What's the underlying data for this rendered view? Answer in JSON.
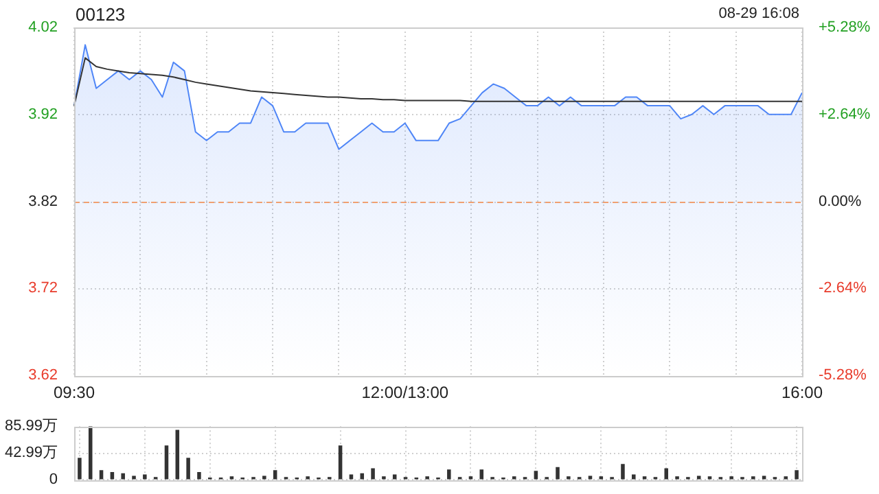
{
  "chart_data": [
    {
      "type": "line",
      "title": "00123",
      "annotations": [
        "08-29 16:08"
      ],
      "categories": [
        "09:30",
        null,
        null,
        null,
        null,
        null,
        null,
        null,
        null,
        null,
        null,
        null,
        null,
        null,
        null,
        null,
        null,
        null,
        null,
        null,
        null,
        null,
        null,
        null,
        null,
        null,
        null,
        null,
        null,
        null,
        "12:00/13:00",
        null,
        null,
        null,
        null,
        null,
        null,
        null,
        null,
        null,
        null,
        null,
        null,
        null,
        null,
        null,
        null,
        null,
        null,
        null,
        null,
        null,
        null,
        null,
        null,
        null,
        null,
        null,
        null,
        null,
        null,
        null,
        null,
        null,
        null,
        null,
        "16:00"
      ],
      "series": [
        {
          "type": "area",
          "color": "#4f86f7",
          "values": [
            3.93,
            4.0,
            3.95,
            3.96,
            3.97,
            3.96,
            3.97,
            3.96,
            3.94,
            3.98,
            3.97,
            3.9,
            3.89,
            3.9,
            3.9,
            3.91,
            3.91,
            3.94,
            3.93,
            3.9,
            3.9,
            3.91,
            3.91,
            3.91,
            3.88,
            3.89,
            3.9,
            3.91,
            3.9,
            3.9,
            3.91,
            3.89,
            3.89,
            3.89,
            3.91,
            3.915,
            3.93,
            3.945,
            3.955,
            3.95,
            3.94,
            3.93,
            3.93,
            3.94,
            3.93,
            3.94,
            3.93,
            3.93,
            3.93,
            3.93,
            3.94,
            3.94,
            3.93,
            3.93,
            3.93,
            3.915,
            3.92,
            3.93,
            3.92,
            3.93,
            3.93,
            3.93,
            3.93,
            3.92,
            3.92,
            3.92,
            3.945
          ]
        },
        {
          "type": "line",
          "color": "#333333",
          "values": [
            3.93,
            3.985,
            3.975,
            3.972,
            3.97,
            3.968,
            3.967,
            3.966,
            3.965,
            3.963,
            3.96,
            3.957,
            3.955,
            3.953,
            3.951,
            3.949,
            3.947,
            3.946,
            3.945,
            3.944,
            3.943,
            3.942,
            3.941,
            3.94,
            3.94,
            3.939,
            3.938,
            3.938,
            3.937,
            3.937,
            3.936,
            3.936,
            3.936,
            3.936,
            3.936,
            3.936,
            3.935,
            3.935,
            3.935,
            3.935,
            3.935,
            3.935,
            3.935,
            3.935,
            3.935,
            3.935,
            3.935,
            3.935,
            3.935,
            3.935,
            3.935,
            3.935,
            3.935,
            3.935,
            3.935,
            3.935,
            3.935,
            3.935,
            3.935,
            3.935,
            3.935,
            3.935,
            3.935,
            3.935,
            3.935,
            3.935,
            3.935
          ]
        }
      ],
      "ylim": [
        3.62,
        4.02
      ],
      "yticks": [
        3.62,
        3.72,
        3.82,
        3.92,
        4.02
      ],
      "y2lim": [
        -5.28,
        5.28
      ],
      "y2ticks": [
        {
          "value": -5.28,
          "label": "-5.28%"
        },
        {
          "value": -2.64,
          "label": "-2.64%"
        },
        {
          "value": 0,
          "label": "0.00%"
        },
        {
          "value": 2.64,
          "label": "+2.64%"
        },
        {
          "value": 5.28,
          "label": "+5.28%"
        }
      ],
      "ref_lines": [
        {
          "axis": "y",
          "value": 3.82,
          "color": "#f0a070",
          "line_style": "dashed"
        }
      ],
      "grid": true,
      "legend": false,
      "marker": "none"
    },
    {
      "type": "bar",
      "color": "#333333",
      "categories": [
        null,
        null,
        null,
        null,
        null,
        null,
        null,
        null,
        null,
        null,
        null,
        null,
        null,
        null,
        null,
        null,
        null,
        null,
        null,
        null,
        null,
        null,
        null,
        null,
        null,
        null,
        null,
        null,
        null,
        null,
        null,
        null,
        null,
        null,
        null,
        null,
        null,
        null,
        null,
        null,
        null,
        null,
        null,
        null,
        null,
        null,
        null,
        null,
        null,
        null,
        null,
        null,
        null,
        null,
        null,
        null,
        null,
        null,
        null,
        null,
        null,
        null,
        null,
        null,
        null,
        null,
        null
      ],
      "values": [
        35,
        85.99,
        15,
        12,
        10,
        6,
        8,
        4,
        55,
        80,
        35,
        12,
        3,
        3,
        5,
        3,
        4,
        6,
        15,
        4,
        3,
        5,
        3,
        4,
        55,
        8,
        10,
        18,
        5,
        8,
        4,
        3,
        5,
        3,
        16,
        4,
        5,
        16,
        4,
        3,
        5,
        4,
        14,
        4,
        20,
        5,
        4,
        6,
        5,
        4,
        25,
        8,
        5,
        4,
        18,
        5,
        4,
        6,
        5,
        4,
        5,
        4,
        5,
        6,
        4,
        5,
        15
      ],
      "ylim": [
        0,
        85.99
      ],
      "yticks": [
        0,
        {
          "value": 42.99,
          "label": "42.99万"
        },
        {
          "value": 85.99,
          "label": "85.99万"
        }
      ],
      "grid": true,
      "legend": false,
      "tick_labels": "y"
    }
  ]
}
